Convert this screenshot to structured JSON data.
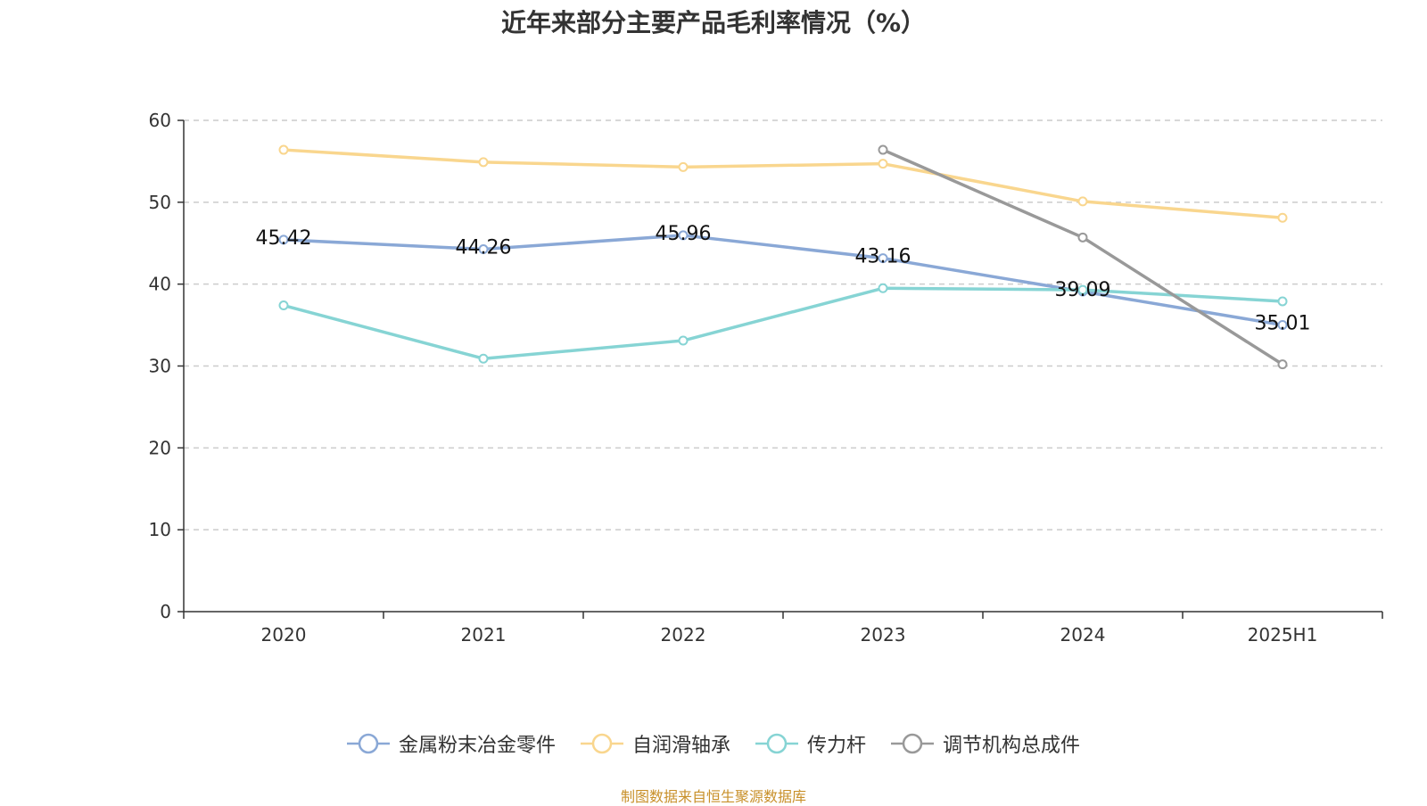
{
  "title": "近年来部分主要产品毛利率情况（%）",
  "source": "制图数据来自恒生聚源数据库",
  "chart_data": {
    "type": "line",
    "title": "近年来部分主要产品毛利率情况（%）",
    "categories": [
      "2020",
      "2021",
      "2022",
      "2023",
      "2024",
      "2025H1"
    ],
    "ylim": [
      0,
      60
    ],
    "yticks": [
      0,
      10,
      20,
      30,
      40,
      50,
      60
    ],
    "grid": true,
    "legend_position": "bottom",
    "series": [
      {
        "name": "金属粉末冶金零件",
        "color": "#8aa8d6",
        "values": [
          45.42,
          44.26,
          45.96,
          43.16,
          39.09,
          35.01
        ],
        "show_labels": true
      },
      {
        "name": "自润滑轴承",
        "color": "#f9d68e",
        "values": [
          56.4,
          54.9,
          54.3,
          54.7,
          50.1,
          48.1
        ],
        "show_labels": false
      },
      {
        "name": "传力杆",
        "color": "#86d4d4",
        "values": [
          37.4,
          30.9,
          33.1,
          39.5,
          39.3,
          37.9
        ],
        "show_labels": false
      },
      {
        "name": "调节机构总成件",
        "color": "#999999",
        "values": [
          null,
          null,
          null,
          56.4,
          45.7,
          30.2
        ],
        "show_labels": false
      }
    ]
  }
}
